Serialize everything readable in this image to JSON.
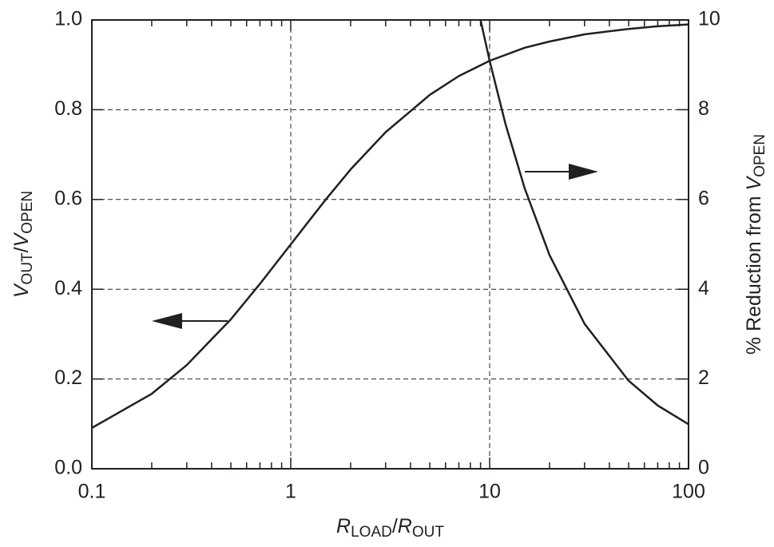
{
  "chart_data": {
    "type": "line",
    "xlabel": [
      "R",
      "LOAD",
      "/",
      "R",
      "OUT"
    ],
    "ylabel": [
      "V",
      "OUT",
      "/",
      "V",
      "OPEN"
    ],
    "y2label": [
      "% Reduction from ",
      "V",
      "OPEN"
    ],
    "xscale": "log",
    "minor_ticks": true,
    "grid": true,
    "xlim": [
      0.1,
      100
    ],
    "xticks": [
      0.1,
      1,
      10,
      100
    ],
    "ylim": [
      0,
      1
    ],
    "yticks": [
      {
        "value": 0,
        "label": "0.0"
      },
      0.2,
      0.4,
      0.6,
      0.8,
      {
        "value": 1,
        "label": "1.0"
      }
    ],
    "y2lim": [
      0,
      10
    ],
    "y2ticks": [
      0,
      2,
      4,
      6,
      8,
      10
    ],
    "series": [
      {
        "color": "#231f20",
        "x": [
          0.1,
          0.2,
          0.3,
          0.5,
          0.7,
          1,
          1.5,
          2,
          3,
          5,
          7,
          10,
          15,
          20,
          30,
          50,
          70,
          100
        ],
        "values": [
          0.091,
          0.167,
          0.231,
          0.333,
          0.412,
          0.5,
          0.6,
          0.667,
          0.75,
          0.833,
          0.875,
          0.909,
          0.938,
          0.952,
          0.968,
          0.98,
          0.986,
          0.99
        ]
      },
      {
        "color": "#231f20",
        "axis": "y2",
        "x": [
          9,
          10,
          12,
          15,
          20,
          30,
          50,
          70,
          100
        ],
        "values": [
          10,
          9.09,
          7.69,
          6.25,
          4.76,
          3.23,
          1.96,
          1.41,
          0.99
        ]
      }
    ]
  }
}
